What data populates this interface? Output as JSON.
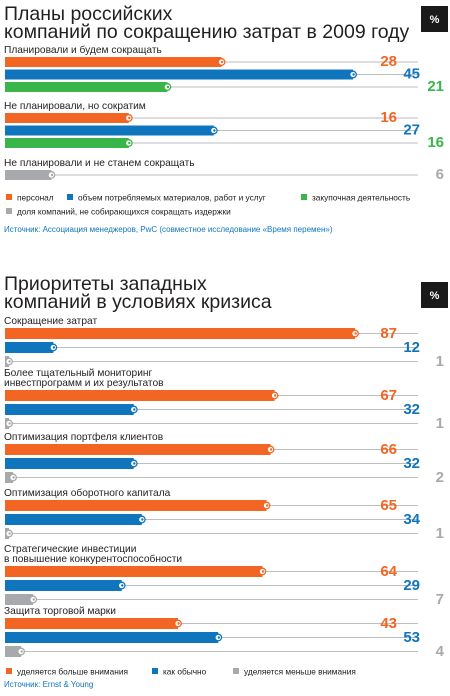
{
  "chart_data": [
    {
      "type": "bar",
      "orientation": "horizontal",
      "title": "Планы российских компаний по сокращению затрат в 2009 году",
      "unit_badge": "%",
      "categories": [
        "Планировали и будем сокращать",
        "Не планировали, но сократим",
        "Не планировали и не станем сокращать"
      ],
      "series": [
        {
          "name": "персонал",
          "color": "#f26522",
          "values": [
            28,
            16,
            null
          ]
        },
        {
          "name": "объем потребляемых материалов, работ и услуг",
          "color": "#0f75bc",
          "values": [
            45,
            27,
            null
          ]
        },
        {
          "name": "закупочная деятельность",
          "color": "#39b54a",
          "values": [
            21,
            16,
            null
          ]
        },
        {
          "name": "доля компаний, не собирающихся сокращать издержки",
          "color": "#a7a9ac",
          "values": [
            null,
            null,
            6
          ]
        }
      ],
      "xlim": [
        0,
        60
      ],
      "grid": false,
      "legend_position": "bottom",
      "source": "Источник: Ассоциация менеджеров, PwC (совместное исследование «Время перемен»)"
    },
    {
      "type": "bar",
      "orientation": "horizontal",
      "title": "Приоритеты западных компаний в условиях кризиса",
      "unit_badge": "%",
      "categories": [
        "Сокращение затрат",
        "Более тщательный мониторинг инвестпрограмм и их результатов",
        "Оптимизация портфеля клиентов",
        "Оптимизация оборотного капитала",
        "Стратегические инвестиции в повышение конкурентоспособности",
        "Защита торговой марки"
      ],
      "series": [
        {
          "name": "уделяется больше внимания",
          "color": "#f26522",
          "values": [
            87,
            67,
            66,
            65,
            64,
            43
          ]
        },
        {
          "name": "как обычно",
          "color": "#0f75bc",
          "values": [
            12,
            32,
            32,
            34,
            29,
            53
          ]
        },
        {
          "name": "уделяется меньше внимания",
          "color": "#a7a9ac",
          "values": [
            1,
            1,
            2,
            1,
            7,
            4
          ]
        }
      ],
      "xlim": [
        0,
        100
      ],
      "grid": false,
      "legend_position": "bottom",
      "source": "Источник: Ernst & Young"
    }
  ]
}
